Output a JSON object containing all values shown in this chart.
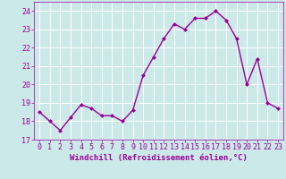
{
  "x": [
    0,
    1,
    2,
    3,
    4,
    5,
    6,
    7,
    8,
    9,
    10,
    11,
    12,
    13,
    14,
    15,
    16,
    17,
    18,
    19,
    20,
    21,
    22,
    23
  ],
  "y": [
    18.5,
    18.0,
    17.5,
    18.2,
    18.9,
    18.7,
    18.3,
    18.3,
    18.0,
    18.6,
    20.5,
    21.5,
    22.5,
    23.3,
    23.0,
    23.6,
    23.6,
    24.0,
    23.5,
    22.5,
    20.0,
    21.4,
    19.0,
    18.7
  ],
  "line_color": "#990099",
  "marker": "D",
  "marker_size": 2.5,
  "line_width": 1.0,
  "bg_color": "#cce9e9",
  "grid_color": "#aacccc",
  "xlabel": "Windchill (Refroidissement éolien,°C)",
  "xlabel_color": "#990099",
  "xlabel_fontsize": 6.5,
  "tick_color": "#990099",
  "tick_fontsize": 6,
  "ylim": [
    17,
    24.5
  ],
  "yticks": [
    17,
    18,
    19,
    20,
    21,
    22,
    23,
    24
  ],
  "xlim": [
    -0.5,
    23.5
  ],
  "xticks": [
    0,
    1,
    2,
    3,
    4,
    5,
    6,
    7,
    8,
    9,
    10,
    11,
    12,
    13,
    14,
    15,
    16,
    17,
    18,
    19,
    20,
    21,
    22,
    23
  ]
}
